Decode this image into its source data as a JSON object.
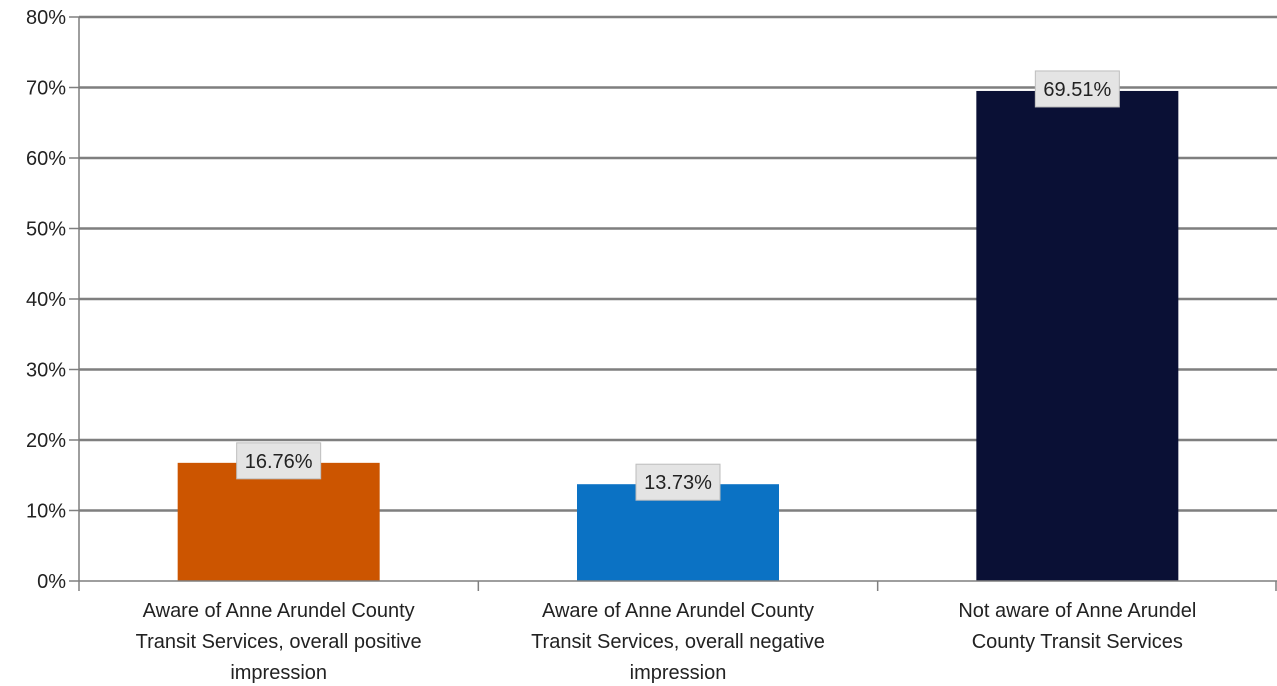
{
  "chart_data": {
    "type": "bar",
    "title": "",
    "xlabel": "",
    "ylabel": "",
    "categories": [
      "Aware of Anne Arundel County Transit Services, overall positive impression",
      "Aware of Anne Arundel County Transit Services, overall negative impression",
      "Not aware of Anne Arundel County Transit Services"
    ],
    "category_lines": [
      [
        "Aware of Anne Arundel County",
        "Transit Services, overall positive",
        "impression"
      ],
      [
        "Aware of Anne Arundel County",
        "Transit Services, overall negative",
        "impression"
      ],
      [
        "Not aware of Anne Arundel",
        "County Transit Services"
      ]
    ],
    "values": [
      16.76,
      13.73,
      69.51
    ],
    "data_labels": [
      "16.76%",
      "13.73%",
      "69.51%"
    ],
    "bar_colors": [
      "#cc5500",
      "#0b72c4",
      "#0a1035"
    ],
    "ylim": [
      0,
      80
    ],
    "yticks": [
      0,
      10,
      20,
      30,
      40,
      50,
      60,
      70,
      80
    ],
    "ytick_labels": [
      "0%",
      "10%",
      "20%",
      "30%",
      "40%",
      "50%",
      "60%",
      "70%",
      "80%"
    ],
    "grid": true,
    "legend": "none"
  }
}
